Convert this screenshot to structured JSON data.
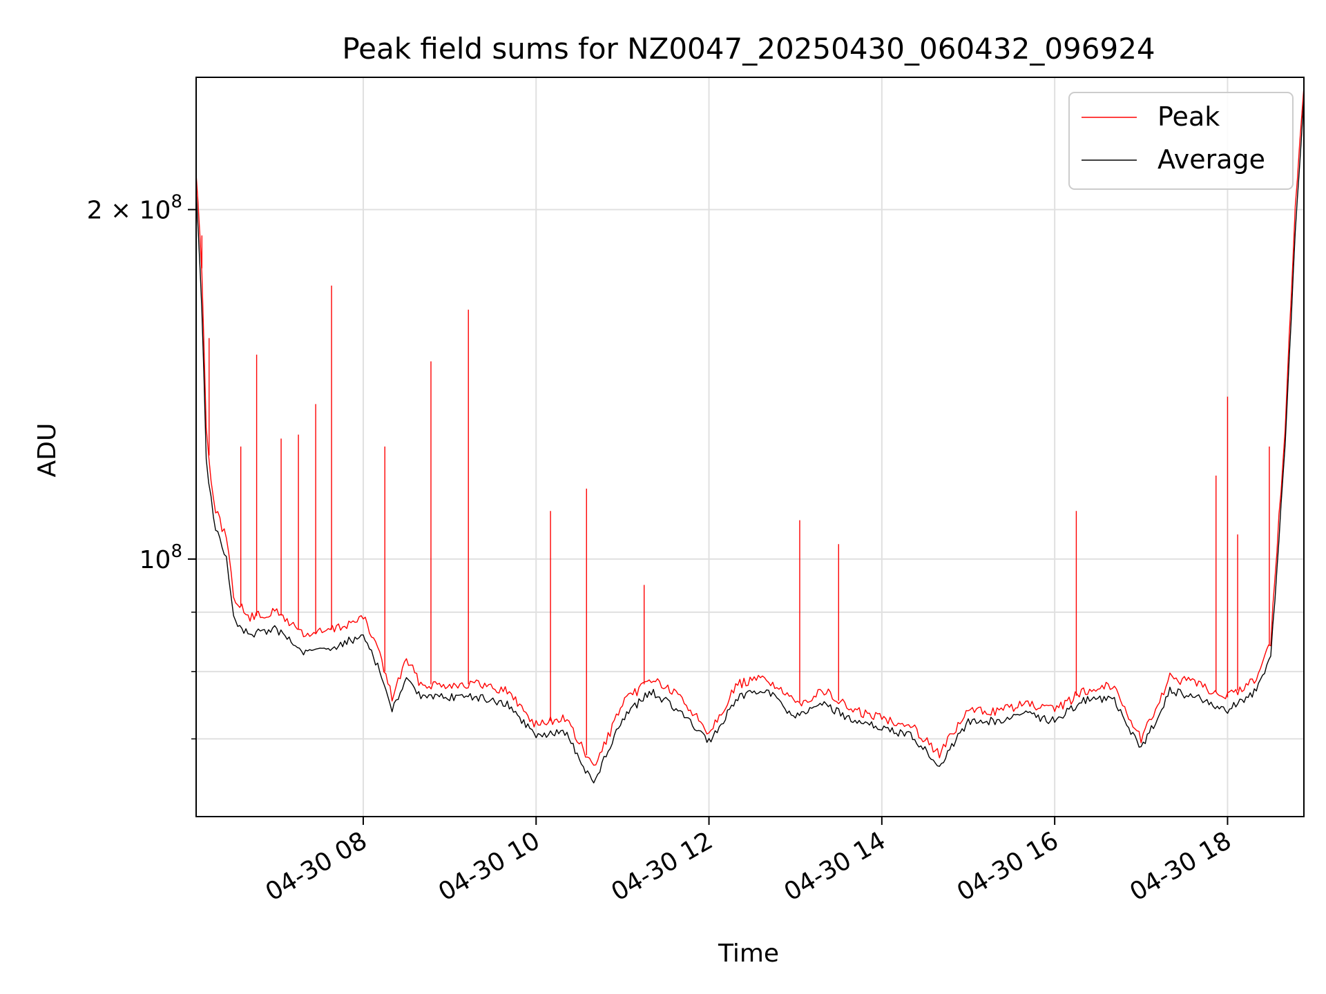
{
  "chart_data": {
    "type": "line",
    "title": "Peak field sums for NZ0047_20250430_060432_096924",
    "xlabel": "Time",
    "ylabel": "ADU",
    "yscale": "log",
    "grid": true,
    "legend_position": "top-right",
    "xlim": [
      "2025-04-30 06:04",
      "2025-04-30 18:53"
    ],
    "ylim": [
      60000000,
      260000000
    ],
    "x_ticks": [
      {
        "value": "2025-04-30 08:00",
        "label": "04-30 08"
      },
      {
        "value": "2025-04-30 10:00",
        "label": "04-30 10"
      },
      {
        "value": "2025-04-30 12:00",
        "label": "04-30 12"
      },
      {
        "value": "2025-04-30 14:00",
        "label": "04-30 14"
      },
      {
        "value": "2025-04-30 16:00",
        "label": "04-30 16"
      },
      {
        "value": "2025-04-30 18:00",
        "label": "04-30 18"
      }
    ],
    "y_major_ticks": [
      {
        "value": 100000000,
        "label_base": "10",
        "label_exp": "8",
        "label_mant": ""
      },
      {
        "value": 200000000,
        "label_base": "10",
        "label_exp": "8",
        "label_mant": "2 × "
      }
    ],
    "y_minor_ticks": [
      70000000,
      80000000,
      90000000
    ],
    "series": [
      {
        "name": "Peak",
        "color": "#ff0000",
        "points": [
          [
            "2025-04-30 06:04",
            215000000
          ],
          [
            "2025-04-30 06:08",
            178000000
          ],
          [
            "2025-04-30 06:11",
            130000000
          ],
          [
            "2025-04-30 06:16",
            112000000
          ],
          [
            "2025-04-30 06:25",
            104000000
          ],
          [
            "2025-04-30 06:30",
            93000000
          ],
          [
            "2025-04-30 06:40",
            89000000
          ],
          [
            "2025-04-30 07:00",
            90000000
          ],
          [
            "2025-04-30 07:20",
            86000000
          ],
          [
            "2025-04-30 07:40",
            87000000
          ],
          [
            "2025-04-30 08:00",
            89000000
          ],
          [
            "2025-04-30 08:10",
            84000000
          ],
          [
            "2025-04-30 08:20",
            76000000
          ],
          [
            "2025-04-30 08:30",
            82000000
          ],
          [
            "2025-04-30 08:40",
            78000000
          ],
          [
            "2025-04-30 09:00",
            78000000
          ],
          [
            "2025-04-30 09:20",
            78000000
          ],
          [
            "2025-04-30 09:40",
            77000000
          ],
          [
            "2025-04-30 10:00",
            72000000
          ],
          [
            "2025-04-30 10:20",
            73000000
          ],
          [
            "2025-04-30 10:40",
            66000000
          ],
          [
            "2025-04-30 11:00",
            75000000
          ],
          [
            "2025-04-30 11:20",
            79000000
          ],
          [
            "2025-04-30 11:40",
            76000000
          ],
          [
            "2025-04-30 12:00",
            71000000
          ],
          [
            "2025-04-30 12:20",
            78000000
          ],
          [
            "2025-04-30 12:40",
            79000000
          ],
          [
            "2025-04-30 13:00",
            75000000
          ],
          [
            "2025-04-30 13:20",
            77000000
          ],
          [
            "2025-04-30 13:40",
            74000000
          ],
          [
            "2025-04-30 14:00",
            73000000
          ],
          [
            "2025-04-30 14:20",
            72000000
          ],
          [
            "2025-04-30 14:40",
            68000000
          ],
          [
            "2025-04-30 15:00",
            74000000
          ],
          [
            "2025-04-30 15:20",
            74000000
          ],
          [
            "2025-04-30 15:40",
            75000000
          ],
          [
            "2025-04-30 16:00",
            74000000
          ],
          [
            "2025-04-30 16:20",
            77000000
          ],
          [
            "2025-04-30 16:40",
            78000000
          ],
          [
            "2025-04-30 17:00",
            70000000
          ],
          [
            "2025-04-30 17:20",
            79000000
          ],
          [
            "2025-04-30 17:40",
            78000000
          ],
          [
            "2025-04-30 18:00",
            76000000
          ],
          [
            "2025-04-30 18:20",
            79000000
          ],
          [
            "2025-04-30 18:30",
            85000000
          ],
          [
            "2025-04-30 18:40",
            130000000
          ],
          [
            "2025-04-30 18:47",
            200000000
          ],
          [
            "2025-04-30 18:53",
            255000000
          ]
        ],
        "spikes": [
          [
            "2025-04-30 06:08",
            190000000
          ],
          [
            "2025-04-30 06:13",
            155000000
          ],
          [
            "2025-04-30 06:35",
            125000000
          ],
          [
            "2025-04-30 06:46",
            150000000
          ],
          [
            "2025-04-30 07:03",
            127000000
          ],
          [
            "2025-04-30 07:15",
            128000000
          ],
          [
            "2025-04-30 07:27",
            136000000
          ],
          [
            "2025-04-30 07:38",
            172000000
          ],
          [
            "2025-04-30 08:15",
            125000000
          ],
          [
            "2025-04-30 08:47",
            148000000
          ],
          [
            "2025-04-30 09:13",
            164000000
          ],
          [
            "2025-04-30 10:10",
            110000000
          ],
          [
            "2025-04-30 10:35",
            115000000
          ],
          [
            "2025-04-30 11:15",
            95000000
          ],
          [
            "2025-04-30 13:03",
            108000000
          ],
          [
            "2025-04-30 13:30",
            103000000
          ],
          [
            "2025-04-30 16:15",
            110000000
          ],
          [
            "2025-04-30 17:52",
            118000000
          ],
          [
            "2025-04-30 18:00",
            138000000
          ],
          [
            "2025-04-30 18:07",
            105000000
          ],
          [
            "2025-04-30 18:29",
            125000000
          ]
        ]
      },
      {
        "name": "Average",
        "color": "#000000",
        "points": [
          [
            "2025-04-30 06:04",
            208000000
          ],
          [
            "2025-04-30 06:08",
            165000000
          ],
          [
            "2025-04-30 06:11",
            122000000
          ],
          [
            "2025-04-30 06:16",
            108000000
          ],
          [
            "2025-04-30 06:25",
            100000000
          ],
          [
            "2025-04-30 06:30",
            89000000
          ],
          [
            "2025-04-30 06:40",
            86000000
          ],
          [
            "2025-04-30 07:00",
            87000000
          ],
          [
            "2025-04-30 07:20",
            83000000
          ],
          [
            "2025-04-30 07:40",
            84000000
          ],
          [
            "2025-04-30 08:00",
            86000000
          ],
          [
            "2025-04-30 08:10",
            81000000
          ],
          [
            "2025-04-30 08:20",
            74000000
          ],
          [
            "2025-04-30 08:30",
            79000000
          ],
          [
            "2025-04-30 08:40",
            76000000
          ],
          [
            "2025-04-30 09:00",
            76000000
          ],
          [
            "2025-04-30 09:20",
            76000000
          ],
          [
            "2025-04-30 09:40",
            75000000
          ],
          [
            "2025-04-30 10:00",
            70500000
          ],
          [
            "2025-04-30 10:20",
            71000000
          ],
          [
            "2025-04-30 10:40",
            64000000
          ],
          [
            "2025-04-30 11:00",
            73000000
          ],
          [
            "2025-04-30 11:20",
            77000000
          ],
          [
            "2025-04-30 11:40",
            74000000
          ],
          [
            "2025-04-30 12:00",
            69500000
          ],
          [
            "2025-04-30 12:20",
            76000000
          ],
          [
            "2025-04-30 12:40",
            77000000
          ],
          [
            "2025-04-30 13:00",
            73000000
          ],
          [
            "2025-04-30 13:20",
            75000000
          ],
          [
            "2025-04-30 13:40",
            72500000
          ],
          [
            "2025-04-30 14:00",
            71500000
          ],
          [
            "2025-04-30 14:20",
            70500000
          ],
          [
            "2025-04-30 14:40",
            66500000
          ],
          [
            "2025-04-30 15:00",
            72500000
          ],
          [
            "2025-04-30 15:20",
            72500000
          ],
          [
            "2025-04-30 15:40",
            73500000
          ],
          [
            "2025-04-30 16:00",
            72500000
          ],
          [
            "2025-04-30 16:20",
            75500000
          ],
          [
            "2025-04-30 16:40",
            76000000
          ],
          [
            "2025-04-30 17:00",
            68500000
          ],
          [
            "2025-04-30 17:20",
            77000000
          ],
          [
            "2025-04-30 17:40",
            76000000
          ],
          [
            "2025-04-30 18:00",
            74000000
          ],
          [
            "2025-04-30 18:20",
            77000000
          ],
          [
            "2025-04-30 18:30",
            82000000
          ],
          [
            "2025-04-30 18:40",
            125000000
          ],
          [
            "2025-04-30 18:47",
            192000000
          ],
          [
            "2025-04-30 18:53",
            250000000
          ]
        ]
      }
    ]
  }
}
